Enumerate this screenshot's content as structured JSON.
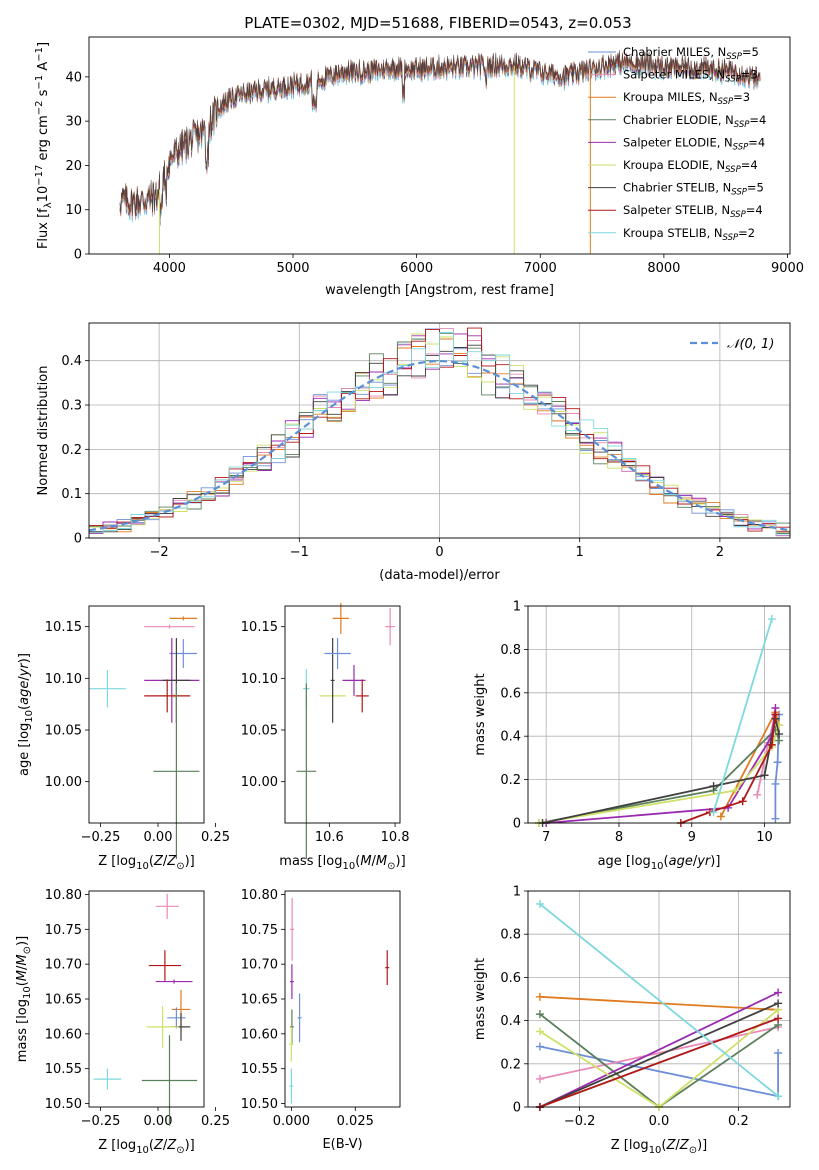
{
  "title": "PLATE=0302, MJD=51688, FIBERID=0543, z=0.053",
  "colors": {
    "Chabrier MILES": "#6e8fd8",
    "Salpeter MILES": "#e889b8",
    "Kroupa MILES": "#e07b20",
    "Chabrier ELODIE": "#5b7f5b",
    "Salpeter ELODIE": "#9a2bb0",
    "Kroupa ELODIE": "#cfe068",
    "Chabrier STELIB": "#404040",
    "Salpeter STELIB": "#b01818",
    "Kroupa STELIB": "#7fd8dd"
  },
  "chart_data": [
    {
      "type": "line",
      "name": "spectrum",
      "xlabel": "wavelength [Angstrom, rest frame]",
      "ylabel": "Flux [f_λ10^-17 erg cm^-2 s^-1 A^-1]",
      "xlim": [
        3350,
        9020
      ],
      "ylim": [
        0,
        49
      ],
      "xticks": [
        4000,
        5000,
        6000,
        7000,
        8000,
        9000
      ],
      "yticks": [
        0,
        10,
        20,
        30,
        40
      ],
      "grid": false,
      "legend_position": "right",
      "legend": [
        {
          "model": "Chabrier MILES",
          "label": "Chabrier MILES, N",
          "sub": "SSP",
          "tail": "=5"
        },
        {
          "model": "Salpeter MILES",
          "label": "Salpeter MILES, N",
          "sub": "SSP",
          "tail": "=3"
        },
        {
          "model": "Kroupa MILES",
          "label": "Kroupa MILES, N",
          "sub": "SSP",
          "tail": "=3"
        },
        {
          "model": "Chabrier ELODIE",
          "label": "Chabrier ELODIE, N",
          "sub": "SSP",
          "tail": "=4"
        },
        {
          "model": "Salpeter ELODIE",
          "label": "Salpeter ELODIE, N",
          "sub": "SSP",
          "tail": "=4"
        },
        {
          "model": "Kroupa ELODIE",
          "label": "Kroupa ELODIE, N",
          "sub": "SSP",
          "tail": "=4"
        },
        {
          "model": "Chabrier STELIB",
          "label": "Chabrier STELIB, N",
          "sub": "SSP",
          "tail": "=5"
        },
        {
          "model": "Salpeter STELIB",
          "label": "Salpeter STELIB, N",
          "sub": "SSP",
          "tail": "=4"
        },
        {
          "model": "Kroupa STELIB",
          "label": "Kroupa STELIB, N",
          "sub": "SSP",
          "tail": "=2"
        }
      ],
      "continuum": {
        "x": [
          3600,
          3700,
          3800,
          3900,
          4000,
          4100,
          4200,
          4300,
          4400,
          4500,
          4600,
          4800,
          5000,
          5200,
          5400,
          5600,
          5800,
          6000,
          6200,
          6400,
          6600,
          6800,
          7000,
          7200,
          7400,
          7600,
          7800,
          8000,
          8200,
          8400,
          8600,
          8780
        ],
        "y": [
          12,
          11.5,
          12,
          13,
          21,
          24,
          26,
          28,
          33,
          35,
          36,
          37,
          38,
          39,
          41,
          41,
          42,
          41.5,
          42,
          42,
          42.5,
          42.5,
          41,
          40,
          41.5,
          43,
          43,
          42,
          42,
          41.5,
          41,
          39
        ]
      },
      "spikes": [
        {
          "model": "Kroupa ELODIE",
          "x": 3920,
          "y": 0
        },
        {
          "model": "Kroupa ELODIE",
          "x": 6790,
          "y": 0
        },
        {
          "model": "Kroupa MILES",
          "x": 7405,
          "y": 0
        }
      ]
    },
    {
      "type": "histogram",
      "name": "residuals",
      "xlabel": "(data-model)/error",
      "ylabel": "Normed distribution",
      "xlim": [
        -2.5,
        2.5
      ],
      "ylim": [
        0,
        0.485
      ],
      "xticks": [
        -2,
        -1,
        0,
        1,
        2
      ],
      "yticks": [
        0,
        0.1,
        0.2,
        0.3,
        0.4
      ],
      "grid": true,
      "bin_width": 0.1,
      "normal_curve": {
        "label": "𝒩(0, 1)",
        "mu": 0,
        "sigma": 1,
        "color": "#5b8fd8"
      }
    },
    {
      "type": "scatter",
      "name": "age-vs-Z",
      "xlabel": "Z [log10(Z/Z⊙)]",
      "ylabel": "age [log10(age/yr)]",
      "xlim": [
        -0.3,
        0.2
      ],
      "ylim": [
        9.96,
        10.17
      ],
      "xticks": [
        -0.25,
        0.0,
        0.25
      ],
      "xticklabels": [
        "−0.25",
        "0.00",
        "0.25"
      ],
      "yticks": [
        10.0,
        10.05,
        10.1,
        10.15
      ],
      "yticklabels": [
        "10.00",
        "10.05",
        "10.10",
        "10.15"
      ],
      "points": [
        {
          "model": "Kroupa STELIB",
          "x": -0.22,
          "xerr": 0.08,
          "y": 10.09,
          "yerr": 0.018
        },
        {
          "model": "Salpeter MILES",
          "x": 0.05,
          "xerr": 0.11,
          "y": 10.15,
          "yerr": 0.0
        },
        {
          "model": "Kroupa MILES",
          "x": 0.11,
          "xerr": 0.06,
          "y": 10.158,
          "yerr": 0.0
        },
        {
          "model": "Chabrier MILES",
          "x": 0.11,
          "xerr": 0.06,
          "y": 10.124,
          "yerr": 0.014
        },
        {
          "model": "Salpeter ELODIE",
          "x": 0.06,
          "xerr": 0.12,
          "y": 10.098,
          "yerr": 0.041
        },
        {
          "model": "Chabrier STELIB",
          "x": 0.08,
          "xerr": 0.06,
          "y": 10.098,
          "yerr": 0.041
        },
        {
          "model": "Kroupa ELODIE",
          "x": 0.07,
          "xerr": 0.07,
          "y": 10.083,
          "yerr": 0.0
        },
        {
          "model": "Salpeter STELIB",
          "x": 0.04,
          "xerr": 0.1,
          "y": 10.083,
          "yerr": 0.016
        },
        {
          "model": "Chabrier ELODIE",
          "x": 0.08,
          "xerr": 0.1,
          "y": 10.01,
          "yerr": 0.085
        }
      ]
    },
    {
      "type": "scatter",
      "name": "age-vs-mass",
      "xlabel": "mass [log10(M/M⊙)]",
      "ylabel": "",
      "xlim": [
        10.465,
        10.815
      ],
      "ylim": [
        9.96,
        10.17
      ],
      "xticks": [
        10.6,
        10.8
      ],
      "xticklabels": [
        "10.6",
        "10.8"
      ],
      "yticks": [
        10.0,
        10.05,
        10.1,
        10.15
      ],
      "yticklabels": [
        "10.00",
        "10.05",
        "10.10",
        "10.15"
      ],
      "points": [
        {
          "model": "Kroupa STELIB",
          "x": 10.53,
          "xerr": 0.01,
          "y": 10.09,
          "yerr": 0.019
        },
        {
          "model": "Chabrier ELODIE",
          "x": 10.53,
          "xerr": 0.03,
          "y": 10.01,
          "yerr": 0.085
        },
        {
          "model": "Kroupa ELODIE",
          "x": 10.61,
          "xerr": 0.04,
          "y": 10.083,
          "yerr": 0.0
        },
        {
          "model": "Chabrier STELIB",
          "x": 10.61,
          "xerr": 0.0,
          "y": 10.098,
          "yerr": 0.041
        },
        {
          "model": "Kroupa MILES",
          "x": 10.635,
          "xerr": 0.025,
          "y": 10.158,
          "yerr": 0.015
        },
        {
          "model": "Chabrier MILES",
          "x": 10.625,
          "xerr": 0.04,
          "y": 10.124,
          "yerr": 0.015
        },
        {
          "model": "Salpeter ELODIE",
          "x": 10.675,
          "xerr": 0.035,
          "y": 10.098,
          "yerr": 0.015
        },
        {
          "model": "Salpeter STELIB",
          "x": 10.7,
          "xerr": 0.02,
          "y": 10.083,
          "yerr": 0.016
        },
        {
          "model": "Salpeter MILES",
          "x": 10.785,
          "xerr": 0.015,
          "y": 10.15,
          "yerr": 0.018
        }
      ]
    },
    {
      "type": "line",
      "name": "mass-weight-vs-age",
      "xlabel": "age [log10(age/yr)]",
      "ylabel": "mass weight",
      "xlim": [
        6.75,
        10.35
      ],
      "ylim": [
        0,
        1.0
      ],
      "xticks": [
        7,
        8,
        9,
        10
      ],
      "yticks": [
        0,
        0.2,
        0.4,
        0.6,
        0.8,
        1.0
      ],
      "grid": true,
      "series": [
        {
          "model": "Chabrier MILES",
          "x": [
            10.15,
            10.15,
            10.18,
            10.2
          ],
          "y": [
            0.02,
            0.18,
            0.28,
            0.5
          ]
        },
        {
          "model": "Salpeter MILES",
          "x": [
            9.9,
            10.05,
            10.15
          ],
          "y": [
            0.13,
            0.37,
            0.5
          ]
        },
        {
          "model": "Kroupa MILES",
          "x": [
            9.4,
            10.15,
            10.2
          ],
          "y": [
            0.03,
            0.51,
            0.45
          ]
        },
        {
          "model": "Chabrier ELODIE",
          "x": [
            6.9,
            9.3,
            10.15,
            10.2
          ],
          "y": [
            0.0,
            0.15,
            0.43,
            0.38
          ]
        },
        {
          "model": "Salpeter ELODIE",
          "x": [
            7.0,
            9.5,
            10.1,
            10.15
          ],
          "y": [
            0.0,
            0.07,
            0.4,
            0.53
          ]
        },
        {
          "model": "Kroupa ELODIE",
          "x": [
            6.9,
            9.6,
            10.1,
            10.2
          ],
          "y": [
            0.0,
            0.15,
            0.35,
            0.45
          ]
        },
        {
          "model": "Chabrier STELIB",
          "x": [
            6.95,
            9.3,
            10.0,
            10.15,
            10.2
          ],
          "y": [
            0.0,
            0.17,
            0.22,
            0.48,
            0.41
          ]
        },
        {
          "model": "Salpeter STELIB",
          "x": [
            8.85,
            9.25,
            9.7,
            10.1,
            10.15
          ],
          "y": [
            0.0,
            0.05,
            0.1,
            0.36,
            0.5
          ]
        },
        {
          "model": "Kroupa STELIB",
          "x": [
            9.3,
            10.1
          ],
          "y": [
            0.05,
            0.94
          ]
        }
      ]
    },
    {
      "type": "scatter",
      "name": "mass-vs-Z",
      "xlabel": "Z [log10(Z/Z⊙)]",
      "ylabel": "mass [log10(M/M⊙)]",
      "xlim": [
        -0.3,
        0.2
      ],
      "ylim": [
        10.495,
        10.805
      ],
      "xticks": [
        -0.25,
        0.0,
        0.25
      ],
      "xticklabels": [
        "−0.25",
        "0.00",
        "0.25"
      ],
      "yticks": [
        10.5,
        10.55,
        10.6,
        10.65,
        10.7,
        10.75,
        10.8
      ],
      "yticklabels": [
        "10.50",
        "10.55",
        "10.60",
        "10.65",
        "10.70",
        "10.75",
        "10.80"
      ],
      "points": [
        {
          "model": "Kroupa STELIB",
          "x": -0.22,
          "xerr": 0.06,
          "y": 10.535,
          "yerr": 0.015
        },
        {
          "model": "Salpeter MILES",
          "x": 0.04,
          "xerr": 0.05,
          "y": 10.783,
          "yerr": 0.018
        },
        {
          "model": "Salpeter STELIB",
          "x": 0.03,
          "xerr": 0.07,
          "y": 10.698,
          "yerr": 0.022
        },
        {
          "model": "Salpeter ELODIE",
          "x": 0.07,
          "xerr": 0.08,
          "y": 10.675,
          "yerr": 0.0
        },
        {
          "model": "Kroupa MILES",
          "x": 0.1,
          "xerr": 0.04,
          "y": 10.635,
          "yerr": 0.028
        },
        {
          "model": "Chabrier MILES",
          "x": 0.08,
          "xerr": 0.04,
          "y": 10.623,
          "yerr": 0.015
        },
        {
          "model": "Chabrier STELIB",
          "x": 0.1,
          "xerr": 0.04,
          "y": 10.61,
          "yerr": 0.02
        },
        {
          "model": "Kroupa ELODIE",
          "x": 0.02,
          "xerr": 0.07,
          "y": 10.61,
          "yerr": 0.03
        },
        {
          "model": "Chabrier ELODIE",
          "x": 0.05,
          "xerr": 0.12,
          "y": 10.533,
          "yerr": 0.065
        }
      ]
    },
    {
      "type": "scatter",
      "name": "mass-vs-EBV",
      "xlabel": "E(B-V)",
      "ylabel": "",
      "xlim": [
        -0.0025,
        0.0425
      ],
      "ylim": [
        10.495,
        10.805
      ],
      "xticks": [
        0.0,
        0.025
      ],
      "xticklabels": [
        "0.000",
        "0.025"
      ],
      "yticks": [
        10.5,
        10.55,
        10.6,
        10.65,
        10.7,
        10.75,
        10.8
      ],
      "yticklabels": [
        "10.50",
        "10.55",
        "10.60",
        "10.65",
        "10.70",
        "10.75",
        "10.80"
      ],
      "points": [
        {
          "model": "Salpeter MILES",
          "x": 0.0003,
          "xerr": 0.0,
          "y": 10.75,
          "yerr": 0.045
        },
        {
          "model": "Salpeter ELODIE",
          "x": 0.0002,
          "xerr": 0.0,
          "y": 10.675,
          "yerr": 0.025
        },
        {
          "model": "Chabrier ELODIE",
          "x": 0.0002,
          "xerr": 0.0,
          "y": 10.61,
          "yerr": 0.025
        },
        {
          "model": "Kroupa ELODIE",
          "x": 0.0,
          "xerr": 0.0,
          "y": 10.585,
          "yerr": 0.025
        },
        {
          "model": "Kroupa STELIB",
          "x": 0.0,
          "xerr": 0.0,
          "y": 10.525,
          "yerr": 0.025
        },
        {
          "model": "Chabrier MILES",
          "x": 0.0032,
          "xerr": 0.0,
          "y": 10.623,
          "yerr": 0.035
        },
        {
          "model": "Salpeter STELIB",
          "x": 0.0375,
          "xerr": 0.0,
          "y": 10.695,
          "yerr": 0.025
        }
      ]
    },
    {
      "type": "line",
      "name": "mass-weight-vs-Z",
      "xlabel": "Z [log10(Z/Z⊙)]",
      "ylabel": "mass weight",
      "xlim": [
        -0.33,
        0.33
      ],
      "ylim": [
        0,
        1.0
      ],
      "xticks": [
        -0.2,
        0.0,
        0.2
      ],
      "xticklabels": [
        "−0.2",
        "0.0",
        "0.2"
      ],
      "yticks": [
        0,
        0.2,
        0.4,
        0.6,
        0.8,
        1.0
      ],
      "grid": true,
      "series": [
        {
          "model": "Chabrier MILES",
          "x": [
            -0.3,
            0.3,
            0.3
          ],
          "y": [
            0.28,
            0.05,
            0.25
          ]
        },
        {
          "model": "Salpeter MILES",
          "x": [
            -0.3,
            0.3
          ],
          "y": [
            0.13,
            0.37
          ]
        },
        {
          "model": "Kroupa MILES",
          "x": [
            -0.3,
            0.3
          ],
          "y": [
            0.51,
            0.45
          ]
        },
        {
          "model": "Chabrier ELODIE",
          "x": [
            -0.3,
            0.0,
            0.3
          ],
          "y": [
            0.43,
            0.0,
            0.38
          ]
        },
        {
          "model": "Salpeter ELODIE",
          "x": [
            -0.3,
            0.3
          ],
          "y": [
            0.0,
            0.53
          ]
        },
        {
          "model": "Kroupa ELODIE",
          "x": [
            -0.3,
            0.0,
            0.3
          ],
          "y": [
            0.35,
            0.0,
            0.45
          ]
        },
        {
          "model": "Chabrier STELIB",
          "x": [
            -0.3,
            0.3
          ],
          "y": [
            0.0,
            0.48
          ]
        },
        {
          "model": "Salpeter STELIB",
          "x": [
            -0.3,
            0.3
          ],
          "y": [
            0.0,
            0.41
          ]
        },
        {
          "model": "Kroupa STELIB",
          "x": [
            -0.3,
            0.3
          ],
          "y": [
            0.94,
            0.05
          ]
        }
      ]
    }
  ]
}
